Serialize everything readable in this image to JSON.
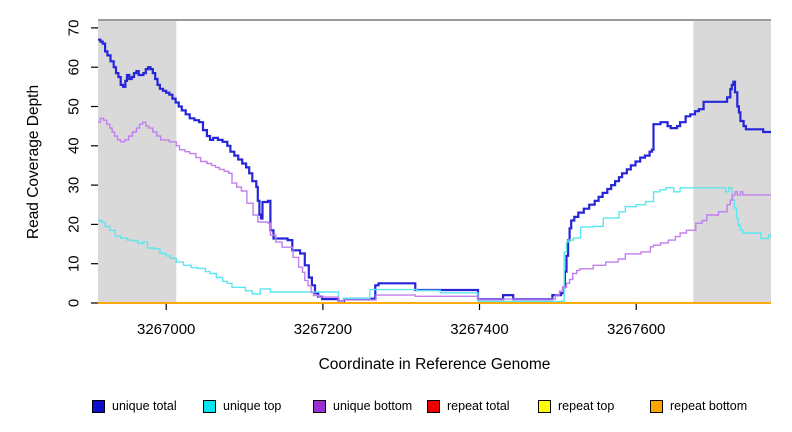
{
  "chart_data": {
    "type": "line",
    "style": "step",
    "xlabel": "Coordinate in Reference Genome",
    "ylabel": "Read Coverage Depth",
    "xlim": [
      3266913,
      3267772
    ],
    "ylim": [
      0,
      72
    ],
    "x_ticks": [
      3267000,
      3267200,
      3267400,
      3267600
    ],
    "y_ticks": [
      0,
      10,
      20,
      30,
      40,
      50,
      60,
      70
    ],
    "grid": false,
    "legend_position": "bottom",
    "background_color": "#ffffff",
    "shaded_region_color": "#d9d9d9",
    "shaded_regions": [
      {
        "x0": 3266913,
        "x1": 3267013
      },
      {
        "x0": 3267673,
        "x1": 3267772
      }
    ],
    "series": [
      {
        "name": "unique total",
        "color": "#2626d8",
        "legend_color": "#0d0dcc",
        "width": 2.2,
        "points": [
          [
            3266913,
            67
          ],
          [
            3266916,
            66.5
          ],
          [
            3266919,
            66
          ],
          [
            3266922,
            64
          ],
          [
            3266925,
            63
          ],
          [
            3266929,
            61.5
          ],
          [
            3266933,
            60
          ],
          [
            3266936,
            58.5
          ],
          [
            3266939,
            57.5
          ],
          [
            3266942,
            55.5
          ],
          [
            3266945,
            55
          ],
          [
            3266948,
            56.5
          ],
          [
            3266950,
            58
          ],
          [
            3266953,
            57
          ],
          [
            3266956,
            57.5
          ],
          [
            3266959,
            58.5
          ],
          [
            3266962,
            59
          ],
          [
            3266965,
            58
          ],
          [
            3266971,
            58.5
          ],
          [
            3266974,
            59.5
          ],
          [
            3266977,
            60
          ],
          [
            3266980,
            59.5
          ],
          [
            3266983,
            58.5
          ],
          [
            3266986,
            57
          ],
          [
            3266989,
            55.5
          ],
          [
            3266992,
            54.5
          ],
          [
            3266996,
            54
          ],
          [
            3267000,
            53.5
          ],
          [
            3267004,
            53
          ],
          [
            3267008,
            52
          ],
          [
            3267012,
            51
          ],
          [
            3267016,
            50
          ],
          [
            3267020,
            49
          ],
          [
            3267025,
            48
          ],
          [
            3267030,
            47
          ],
          [
            3267036,
            46.5
          ],
          [
            3267042,
            46
          ],
          [
            3267047,
            44
          ],
          [
            3267052,
            42.5
          ],
          [
            3267056,
            41.5
          ],
          [
            3267060,
            42
          ],
          [
            3267066,
            41.5
          ],
          [
            3267072,
            41
          ],
          [
            3267078,
            40
          ],
          [
            3267082,
            38.5
          ],
          [
            3267087,
            37.5
          ],
          [
            3267092,
            36.5
          ],
          [
            3267097,
            35.5
          ],
          [
            3267102,
            34.5
          ],
          [
            3267106,
            33
          ],
          [
            3267110,
            31
          ],
          [
            3267115,
            29.5
          ],
          [
            3267117,
            26
          ],
          [
            3267119,
            22.5
          ],
          [
            3267121,
            21.5
          ],
          [
            3267123,
            25.7
          ],
          [
            3267130,
            26
          ],
          [
            3267133,
            18.5
          ],
          [
            3267137,
            16.4
          ],
          [
            3267155,
            16
          ],
          [
            3267161,
            13.4
          ],
          [
            3267171,
            12.6
          ],
          [
            3267177,
            9.6
          ],
          [
            3267182,
            6.5
          ],
          [
            3267186,
            4.5
          ],
          [
            3267190,
            2.5
          ],
          [
            3267194,
            1.6
          ],
          [
            3267199,
            1
          ],
          [
            3267220,
            0.4
          ],
          [
            3267227,
            1.1
          ],
          [
            3267267,
            4.5
          ],
          [
            3267271,
            5
          ],
          [
            3267318,
            3.3
          ],
          [
            3267398,
            1
          ],
          [
            3267430,
            2
          ],
          [
            3267443,
            1
          ],
          [
            3267493,
            2
          ],
          [
            3267504,
            2.5
          ],
          [
            3267507,
            4
          ],
          [
            3267509,
            8
          ],
          [
            3267511,
            12
          ],
          [
            3267513,
            16
          ],
          [
            3267515,
            19
          ],
          [
            3267517,
            21
          ],
          [
            3267521,
            21.9
          ],
          [
            3267526,
            23
          ],
          [
            3267533,
            24
          ],
          [
            3267540,
            25
          ],
          [
            3267547,
            26
          ],
          [
            3267552,
            27
          ],
          [
            3267557,
            28
          ],
          [
            3267563,
            29
          ],
          [
            3267568,
            30
          ],
          [
            3267573,
            31
          ],
          [
            3267578,
            32
          ],
          [
            3267582,
            33
          ],
          [
            3267588,
            34
          ],
          [
            3267593,
            35
          ],
          [
            3267599,
            36
          ],
          [
            3267605,
            37
          ],
          [
            3267611,
            37.5
          ],
          [
            3267617,
            38.5
          ],
          [
            3267620,
            39
          ],
          [
            3267622,
            45.5
          ],
          [
            3267631,
            46
          ],
          [
            3267640,
            45
          ],
          [
            3267644,
            44.5
          ],
          [
            3267652,
            45
          ],
          [
            3267656,
            46
          ],
          [
            3267663,
            47.5
          ],
          [
            3267669,
            48
          ],
          [
            3267675,
            48.8
          ],
          [
            3267680,
            49.3
          ],
          [
            3267686,
            51.2
          ],
          [
            3267716,
            52.3
          ],
          [
            3267720,
            54.4
          ],
          [
            3267722,
            55.5
          ],
          [
            3267724,
            56.3
          ],
          [
            3267726,
            53.6
          ],
          [
            3267729,
            50
          ],
          [
            3267731,
            48.5
          ],
          [
            3267733,
            46.3
          ],
          [
            3267737,
            45
          ],
          [
            3267740,
            44.2
          ],
          [
            3267759,
            44.2
          ],
          [
            3267762,
            43.5
          ],
          [
            3267772,
            43.5
          ]
        ]
      },
      {
        "name": "unique top",
        "color": "#5ce6ee",
        "legend_color": "#00e5ee",
        "width": 1.4,
        "points": [
          [
            3266913,
            21
          ],
          [
            3266918,
            20.5
          ],
          [
            3266922,
            19.5
          ],
          [
            3266928,
            18.5
          ],
          [
            3266935,
            17
          ],
          [
            3266942,
            16.5
          ],
          [
            3266950,
            16
          ],
          [
            3266958,
            15.8
          ],
          [
            3266964,
            15.2
          ],
          [
            3266970,
            15.5
          ],
          [
            3266976,
            14
          ],
          [
            3266984,
            13.8
          ],
          [
            3266992,
            12.6
          ],
          [
            3267000,
            12
          ],
          [
            3267005,
            11.4
          ],
          [
            3267013,
            10.4
          ],
          [
            3267022,
            9.6
          ],
          [
            3267032,
            9
          ],
          [
            3267040,
            8.8
          ],
          [
            3267050,
            8
          ],
          [
            3267056,
            7.5
          ],
          [
            3267064,
            6.5
          ],
          [
            3267072,
            5.5
          ],
          [
            3267078,
            5
          ],
          [
            3267084,
            4
          ],
          [
            3267101,
            3.1
          ],
          [
            3267110,
            2.3
          ],
          [
            3267120,
            3.6
          ],
          [
            3267133,
            2.8
          ],
          [
            3267220,
            0.4
          ],
          [
            3267226,
            1.2
          ],
          [
            3267260,
            3.4
          ],
          [
            3267320,
            3.2
          ],
          [
            3267350,
            2.6
          ],
          [
            3267398,
            0.4
          ],
          [
            3267505,
            0.5
          ],
          [
            3267508,
            13
          ],
          [
            3267511,
            15.5
          ],
          [
            3267513,
            16
          ],
          [
            3267520,
            16.5
          ],
          [
            3267529,
            19.3
          ],
          [
            3267545,
            19.5
          ],
          [
            3267558,
            21.6
          ],
          [
            3267578,
            23.2
          ],
          [
            3267586,
            24.5
          ],
          [
            3267600,
            25
          ],
          [
            3267612,
            25.8
          ],
          [
            3267622,
            28.3
          ],
          [
            3267630,
            28.8
          ],
          [
            3267638,
            29.3
          ],
          [
            3267648,
            28.3
          ],
          [
            3267656,
            29.3
          ],
          [
            3267712,
            29.3
          ],
          [
            3267714,
            28.3
          ],
          [
            3267718,
            29.3
          ],
          [
            3267722,
            26.2
          ],
          [
            3267725,
            24.2
          ],
          [
            3267728,
            21.6
          ],
          [
            3267730,
            19.8
          ],
          [
            3267733,
            18.5
          ],
          [
            3267736,
            17.8
          ],
          [
            3267756,
            17.8
          ],
          [
            3267759,
            16.4
          ],
          [
            3267766,
            16.4
          ],
          [
            3267769,
            17.3
          ],
          [
            3267772,
            17.3
          ]
        ]
      },
      {
        "name": "unique bottom",
        "color": "#c27fee",
        "legend_color": "#9930cf",
        "width": 1.4,
        "points": [
          [
            3266913,
            46
          ],
          [
            3266916,
            47
          ],
          [
            3266920,
            46.5
          ],
          [
            3266924,
            45.5
          ],
          [
            3266928,
            44.5
          ],
          [
            3266931,
            43.5
          ],
          [
            3266934,
            42.5
          ],
          [
            3266938,
            41.5
          ],
          [
            3266942,
            41
          ],
          [
            3266947,
            41.5
          ],
          [
            3266952,
            42.5
          ],
          [
            3266957,
            43.5
          ],
          [
            3266962,
            44.5
          ],
          [
            3266966,
            45.5
          ],
          [
            3266970,
            46
          ],
          [
            3266974,
            45
          ],
          [
            3266978,
            44.5
          ],
          [
            3266983,
            43.5
          ],
          [
            3266988,
            42.5
          ],
          [
            3266993,
            41.5
          ],
          [
            3267004,
            41
          ],
          [
            3267013,
            40
          ],
          [
            3267017,
            39
          ],
          [
            3267024,
            38.5
          ],
          [
            3267030,
            38
          ],
          [
            3267038,
            37
          ],
          [
            3267044,
            36
          ],
          [
            3267052,
            35.5
          ],
          [
            3267058,
            35
          ],
          [
            3267063,
            34.5
          ],
          [
            3267068,
            34
          ],
          [
            3267074,
            33.5
          ],
          [
            3267080,
            33
          ],
          [
            3267084,
            30.5
          ],
          [
            3267090,
            29.5
          ],
          [
            3267096,
            28.5
          ],
          [
            3267103,
            25.4
          ],
          [
            3267111,
            22.4
          ],
          [
            3267117,
            20.6
          ],
          [
            3267130,
            20.3
          ],
          [
            3267133,
            17.3
          ],
          [
            3267140,
            15.5
          ],
          [
            3267148,
            14.2
          ],
          [
            3267162,
            11.6
          ],
          [
            3267169,
            9.1
          ],
          [
            3267174,
            7.8
          ],
          [
            3267177,
            5.7
          ],
          [
            3267181,
            4.4
          ],
          [
            3267185,
            2.7
          ],
          [
            3267188,
            1.9
          ],
          [
            3267195,
            1.5
          ],
          [
            3267220,
            0.4
          ],
          [
            3267226,
            0.8
          ],
          [
            3267268,
            2
          ],
          [
            3267318,
            1.7
          ],
          [
            3267398,
            1
          ],
          [
            3267490,
            1
          ],
          [
            3267497,
            2
          ],
          [
            3267502,
            3
          ],
          [
            3267506,
            4
          ],
          [
            3267511,
            5
          ],
          [
            3267515,
            6
          ],
          [
            3267519,
            7.5
          ],
          [
            3267524,
            8.3
          ],
          [
            3267528,
            8.7
          ],
          [
            3267545,
            9.6
          ],
          [
            3267561,
            10.4
          ],
          [
            3267577,
            11.2
          ],
          [
            3267586,
            12.5
          ],
          [
            3267606,
            13
          ],
          [
            3267618,
            14.3
          ],
          [
            3267622,
            14.7
          ],
          [
            3267631,
            15.3
          ],
          [
            3267641,
            16
          ],
          [
            3267650,
            16.9
          ],
          [
            3267656,
            17.8
          ],
          [
            3267664,
            18.5
          ],
          [
            3267676,
            20.3
          ],
          [
            3267684,
            21
          ],
          [
            3267690,
            22.4
          ],
          [
            3267705,
            23.2
          ],
          [
            3267716,
            25
          ],
          [
            3267720,
            26.2
          ],
          [
            3267723,
            27.5
          ],
          [
            3267726,
            28.3
          ],
          [
            3267729,
            27.5
          ],
          [
            3267733,
            28.3
          ],
          [
            3267736,
            27.5
          ],
          [
            3267772,
            27.5
          ]
        ]
      },
      {
        "name": "repeat total",
        "color": "#dd0000",
        "legend_color": "#ee0000",
        "width": 1.4,
        "points": [
          [
            3266913,
            0
          ],
          [
            3267772,
            0
          ]
        ]
      },
      {
        "name": "repeat top",
        "color": "#ffff00",
        "legend_color": "#ffff00",
        "width": 1.4,
        "points": [
          [
            3266913,
            0
          ],
          [
            3267772,
            0
          ]
        ]
      },
      {
        "name": "repeat bottom",
        "color": "#ffa500",
        "legend_color": "#ffa500",
        "width": 1.6,
        "points": [
          [
            3266913,
            0
          ],
          [
            3267772,
            0
          ]
        ]
      }
    ]
  }
}
